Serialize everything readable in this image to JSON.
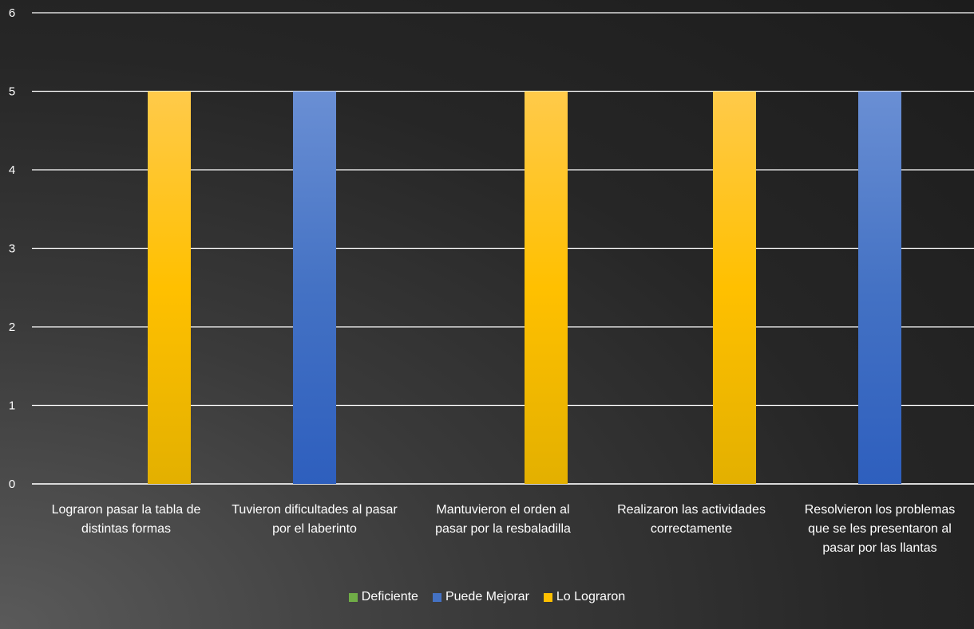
{
  "chart_data": {
    "type": "bar",
    "categories": [
      [
        "Lograron pasar la tabla de",
        "distintas formas"
      ],
      [
        "Tuvieron dificultades al pasar",
        "por el laberinto"
      ],
      [
        "Mantuvieron el orden al",
        "pasar por la resbaladilla"
      ],
      [
        "Realizaron las actividades",
        "correctamente"
      ],
      [
        "Resolvieron los problemas",
        "que se les presentaron al",
        "pasar por las llantas"
      ]
    ],
    "series": [
      {
        "name": "Deficiente",
        "color": "#70ad47",
        "values": [
          0,
          0,
          0,
          0,
          0
        ]
      },
      {
        "name": "Puede Mejorar",
        "color": "#4472c4",
        "values": [
          0,
          5,
          0,
          0,
          5
        ]
      },
      {
        "name": "Lo Lograron",
        "color": "#ffc000",
        "values": [
          5,
          0,
          5,
          5,
          0
        ]
      }
    ],
    "yticks": [
      "0",
      "1",
      "2",
      "3",
      "4",
      "5",
      "6"
    ],
    "ylim": [
      0,
      6
    ],
    "grid": true,
    "legend_position": "bottom"
  }
}
